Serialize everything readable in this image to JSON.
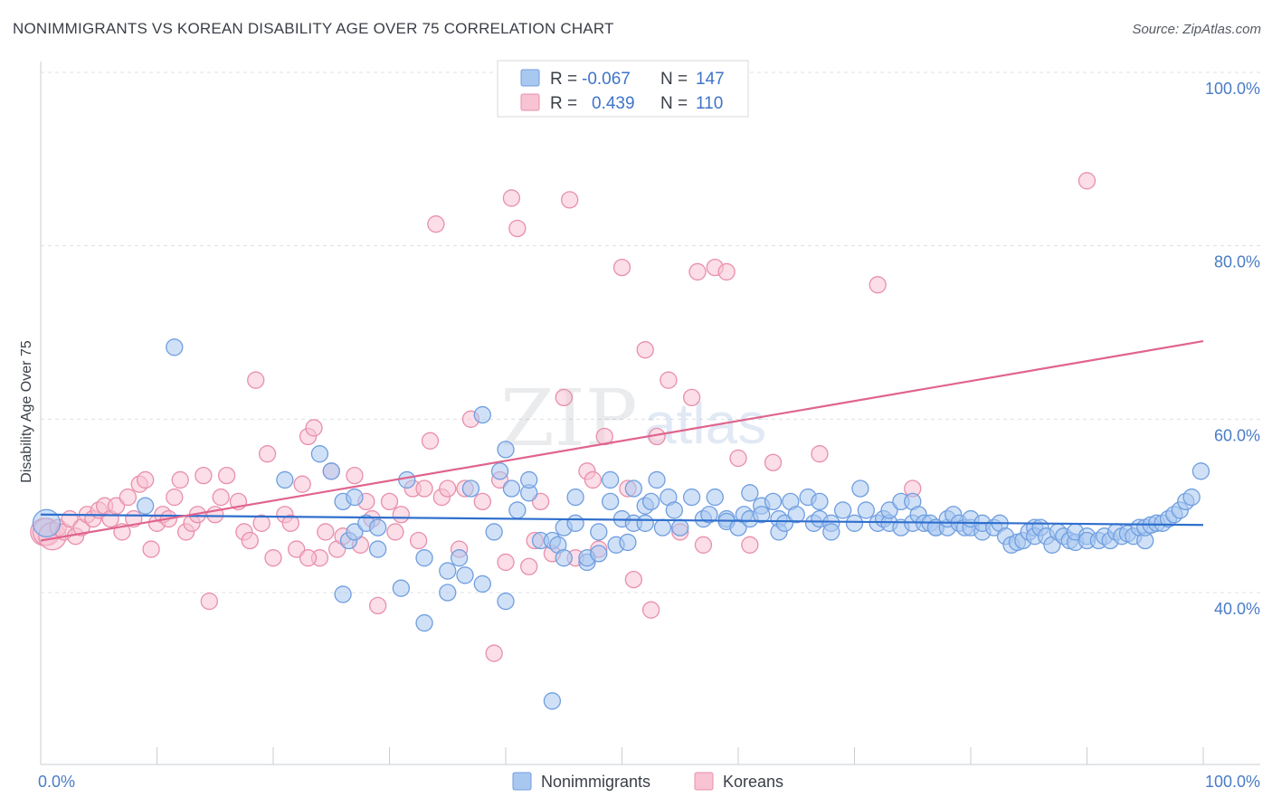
{
  "title": "NONIMMIGRANTS VS KOREAN DISABILITY AGE OVER 75 CORRELATION CHART",
  "source": "Source: ZipAtlas.com",
  "watermark": {
    "zip": "ZIP",
    "atlas": "atlas"
  },
  "legend_top": [
    {
      "r_label": "R =",
      "r_value": "-0.067",
      "n_label": "N =",
      "n_value": "147",
      "color": "#a9c8f0",
      "stroke": "#6f9ee0"
    },
    {
      "r_label": "R =",
      "r_value": "0.439",
      "n_label": "N =",
      "n_value": "110",
      "color": "#f8c3d3",
      "stroke": "#e98fab"
    }
  ],
  "legend_bottom": [
    {
      "label": "Nonimmigrants",
      "color": "#a9c8f0",
      "stroke": "#6f9ee0"
    },
    {
      "label": "Koreans",
      "color": "#f8c3d3",
      "stroke": "#e98fab"
    }
  ],
  "chart_data": {
    "type": "scatter",
    "title": "NONIMMIGRANTS VS KOREAN DISABILITY AGE OVER 75 CORRELATION CHART",
    "xlabel": "",
    "ylabel": "Disability Age Over 75",
    "xlim": [
      0,
      100
    ],
    "ylim": [
      20,
      102
    ],
    "x_tick_labels": [
      "0.0%",
      "100.0%"
    ],
    "y_ticks": [
      40,
      60,
      80,
      100
    ],
    "y_tick_labels": [
      "40.0%",
      "60.0%",
      "80.0%",
      "100.0%"
    ],
    "grid": "horizontal dashed",
    "legend_position": "top-center",
    "series": [
      {
        "name": "Nonimmigrants",
        "color": "#6f9ee0",
        "trend": [
          [
            0,
            49.0
          ],
          [
            100,
            47.8
          ]
        ],
        "points": [
          [
            0.5,
            48
          ],
          [
            9,
            50
          ],
          [
            11.5,
            68.3
          ],
          [
            21,
            53
          ],
          [
            24,
            56
          ],
          [
            25,
            54
          ],
          [
            26,
            50.5
          ],
          [
            27,
            51
          ],
          [
            26.5,
            46
          ],
          [
            27,
            47
          ],
          [
            28,
            48
          ],
          [
            29,
            47.5
          ],
          [
            29,
            45
          ],
          [
            31,
            40.5
          ],
          [
            26,
            39.8
          ],
          [
            31.5,
            53
          ],
          [
            33,
            44
          ],
          [
            33,
            36.5
          ],
          [
            35,
            42.5
          ],
          [
            35,
            40
          ],
          [
            36,
            44
          ],
          [
            36.5,
            42
          ],
          [
            37,
            52
          ],
          [
            38,
            41
          ],
          [
            38,
            60.5
          ],
          [
            39,
            47
          ],
          [
            39.5,
            54
          ],
          [
            40,
            56.5
          ],
          [
            40.5,
            52
          ],
          [
            40,
            39
          ],
          [
            41,
            49.5
          ],
          [
            42,
            51.5
          ],
          [
            42,
            53
          ],
          [
            43,
            46
          ],
          [
            44,
            46
          ],
          [
            44.5,
            45.5
          ],
          [
            44,
            27.5
          ],
          [
            45,
            44
          ],
          [
            45,
            47.5
          ],
          [
            46,
            48
          ],
          [
            46,
            51
          ],
          [
            47,
            43.5
          ],
          [
            47,
            44
          ],
          [
            48,
            47
          ],
          [
            48,
            44.5
          ],
          [
            49,
            53
          ],
          [
            49,
            50.5
          ],
          [
            49.5,
            45.5
          ],
          [
            50,
            48.5
          ],
          [
            50.5,
            45.8
          ],
          [
            51,
            48
          ],
          [
            51,
            52
          ],
          [
            52,
            50
          ],
          [
            52,
            48
          ],
          [
            52.5,
            50.5
          ],
          [
            53,
            53
          ],
          [
            53.5,
            47.5
          ],
          [
            54,
            51
          ],
          [
            54.5,
            49.5
          ],
          [
            55,
            47.5
          ],
          [
            56,
            51
          ],
          [
            57,
            48.5
          ],
          [
            57.5,
            49
          ],
          [
            58,
            51
          ],
          [
            59,
            48.5
          ],
          [
            59,
            48.2
          ],
          [
            60,
            47.5
          ],
          [
            60.5,
            49
          ],
          [
            61,
            48.5
          ],
          [
            61,
            51.5
          ],
          [
            62,
            50
          ],
          [
            62,
            49
          ],
          [
            63,
            50.5
          ],
          [
            63.5,
            48.5
          ],
          [
            63.5,
            47
          ],
          [
            64,
            48
          ],
          [
            64.5,
            50.5
          ],
          [
            65,
            49
          ],
          [
            66,
            51
          ],
          [
            66.5,
            48
          ],
          [
            67,
            48.5
          ],
          [
            67,
            50.5
          ],
          [
            68,
            48
          ],
          [
            68,
            47
          ],
          [
            69,
            49.5
          ],
          [
            70,
            48
          ],
          [
            70.5,
            52
          ],
          [
            71,
            49.5
          ],
          [
            72,
            48
          ],
          [
            72.5,
            48.5
          ],
          [
            73,
            48
          ],
          [
            73,
            49.5
          ],
          [
            74,
            50.5
          ],
          [
            74,
            47.5
          ],
          [
            75,
            48
          ],
          [
            75,
            50.5
          ],
          [
            75.5,
            49
          ],
          [
            76,
            48
          ],
          [
            76.5,
            48
          ],
          [
            77,
            47.5
          ],
          [
            77,
            47.5
          ],
          [
            78,
            47.5
          ],
          [
            78,
            48.5
          ],
          [
            78.5,
            49
          ],
          [
            79,
            48
          ],
          [
            79.5,
            47.5
          ],
          [
            80,
            47.5
          ],
          [
            80,
            48.5
          ],
          [
            81,
            47
          ],
          [
            81,
            48
          ],
          [
            82,
            47.5
          ],
          [
            82.5,
            48
          ],
          [
            83,
            46.5
          ],
          [
            83.5,
            45.5
          ],
          [
            84,
            45.8
          ],
          [
            84.5,
            46
          ],
          [
            85,
            47
          ],
          [
            85.5,
            47.5
          ],
          [
            85.5,
            46.5
          ],
          [
            86,
            47.5
          ],
          [
            86.5,
            46.5
          ],
          [
            87,
            45.5
          ],
          [
            87.5,
            47
          ],
          [
            88,
            46.5
          ],
          [
            88.5,
            46
          ],
          [
            89,
            45.8
          ],
          [
            89,
            47
          ],
          [
            90,
            46.5
          ],
          [
            90,
            46
          ],
          [
            91,
            46
          ],
          [
            91.5,
            46.5
          ],
          [
            92,
            46
          ],
          [
            92.5,
            47
          ],
          [
            93,
            46.5
          ],
          [
            93.5,
            46.8
          ],
          [
            94,
            46.5
          ],
          [
            94.5,
            47.5
          ],
          [
            95,
            46
          ],
          [
            95,
            47.5
          ],
          [
            95.5,
            47.8
          ],
          [
            96,
            48
          ],
          [
            96.5,
            48
          ],
          [
            97,
            48.5
          ],
          [
            97.5,
            49
          ],
          [
            98,
            49.5
          ],
          [
            98.5,
            50.5
          ],
          [
            99,
            51
          ],
          [
            99.8,
            54
          ]
        ]
      },
      {
        "name": "Koreans",
        "color": "#e98fab",
        "trend": [
          [
            0,
            46.0
          ],
          [
            100,
            69.0
          ]
        ],
        "points": [
          [
            0.3,
            47
          ],
          [
            0.5,
            47
          ],
          [
            1,
            46.5
          ],
          [
            1.5,
            47.5
          ],
          [
            2,
            47
          ],
          [
            2.5,
            48.5
          ],
          [
            3,
            46.5
          ],
          [
            3.5,
            47.5
          ],
          [
            4,
            49
          ],
          [
            4.5,
            48.5
          ],
          [
            5,
            49.5
          ],
          [
            5.5,
            50
          ],
          [
            6,
            48.5
          ],
          [
            6.5,
            50
          ],
          [
            7,
            47
          ],
          [
            7.5,
            51
          ],
          [
            8,
            48.5
          ],
          [
            8.5,
            52.5
          ],
          [
            9,
            53
          ],
          [
            9.5,
            45
          ],
          [
            10,
            48
          ],
          [
            10.5,
            49
          ],
          [
            11,
            48.5
          ],
          [
            11.5,
            51
          ],
          [
            12,
            53
          ],
          [
            12.5,
            47
          ],
          [
            13,
            48
          ],
          [
            13.5,
            49
          ],
          [
            14,
            53.5
          ],
          [
            14.5,
            39
          ],
          [
            15,
            49
          ],
          [
            15.5,
            51
          ],
          [
            16,
            53.5
          ],
          [
            17,
            50.5
          ],
          [
            17.5,
            47
          ],
          [
            18,
            46
          ],
          [
            18.5,
            64.5
          ],
          [
            19,
            48
          ],
          [
            19.5,
            56
          ],
          [
            20,
            44
          ],
          [
            21,
            49
          ],
          [
            21.5,
            48
          ],
          [
            22,
            45
          ],
          [
            22.5,
            52.5
          ],
          [
            23,
            58
          ],
          [
            23.5,
            59
          ],
          [
            24,
            44
          ],
          [
            24.5,
            47
          ],
          [
            25,
            54
          ],
          [
            25.5,
            45
          ],
          [
            26,
            46.5
          ],
          [
            27,
            53.5
          ],
          [
            27.5,
            45.5
          ],
          [
            28,
            50.5
          ],
          [
            28.5,
            48.5
          ],
          [
            29,
            38.5
          ],
          [
            30,
            50.5
          ],
          [
            30.5,
            47
          ],
          [
            31,
            49
          ],
          [
            32,
            52
          ],
          [
            32.5,
            46
          ],
          [
            33,
            52
          ],
          [
            33.5,
            57.5
          ],
          [
            34,
            82.5
          ],
          [
            34.5,
            51
          ],
          [
            35,
            52
          ],
          [
            36,
            45
          ],
          [
            36.5,
            52
          ],
          [
            37,
            60
          ],
          [
            38,
            50.5
          ],
          [
            39,
            33
          ],
          [
            39.5,
            53
          ],
          [
            40,
            43.5
          ],
          [
            40.5,
            85.5
          ],
          [
            41,
            82
          ],
          [
            42,
            43
          ],
          [
            42.5,
            46
          ],
          [
            43,
            50.5
          ],
          [
            44,
            44.5
          ],
          [
            45,
            62.5
          ],
          [
            45.5,
            85.3
          ],
          [
            46,
            44
          ],
          [
            47,
            54
          ],
          [
            47.5,
            53
          ],
          [
            48,
            45
          ],
          [
            48.5,
            58
          ],
          [
            50,
            77.5
          ],
          [
            50.5,
            52
          ],
          [
            51,
            41.5
          ],
          [
            52,
            68
          ],
          [
            52.5,
            38
          ],
          [
            53,
            58
          ],
          [
            54,
            64.5
          ],
          [
            55,
            47
          ],
          [
            56,
            62.5
          ],
          [
            56.5,
            77
          ],
          [
            57,
            45.5
          ],
          [
            58,
            77.5
          ],
          [
            59,
            77
          ],
          [
            60,
            55.5
          ],
          [
            61,
            45.5
          ],
          [
            63,
            55
          ],
          [
            67,
            56
          ],
          [
            72,
            75.5
          ],
          [
            75,
            52
          ],
          [
            90,
            87.5
          ],
          [
            23,
            44
          ]
        ]
      }
    ]
  }
}
